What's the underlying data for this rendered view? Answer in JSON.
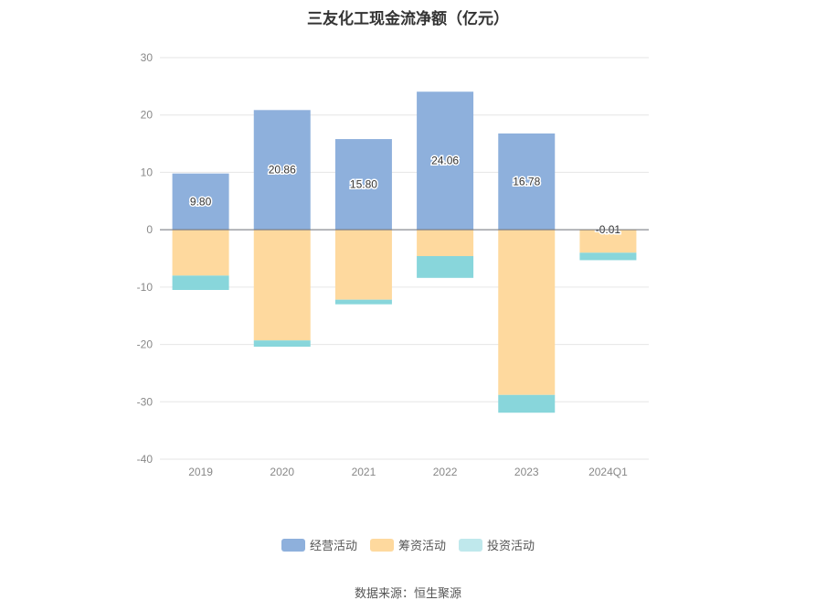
{
  "chart_data": {
    "type": "bar",
    "stacked": true,
    "title": "三友化工现金流净额（亿元）",
    "categories": [
      "2019",
      "2020",
      "2021",
      "2022",
      "2023",
      "2024Q1"
    ],
    "series": [
      {
        "name": "经营活动",
        "color": "#8eb0dc",
        "values": [
          9.8,
          20.86,
          15.8,
          24.06,
          16.78,
          -0.01
        ],
        "labels": [
          "9.80",
          "20.86",
          "15.80",
          "24.06",
          "16.78",
          "-0.01"
        ]
      },
      {
        "name": "筹资活动",
        "color": "#fed99e",
        "values": [
          -8.0,
          -19.3,
          -12.2,
          -4.6,
          -28.8,
          -4.0
        ]
      },
      {
        "name": "投资活动",
        "color": "#88d6db",
        "values": [
          -2.5,
          -1.1,
          -0.8,
          -3.8,
          -3.1,
          -1.3
        ]
      }
    ],
    "ylim": [
      -40,
      30
    ],
    "yticks": [
      30,
      20,
      10,
      0,
      -10,
      -20,
      -30,
      -40
    ],
    "grid": true,
    "legend_position": "bottom"
  },
  "legend": {
    "items": [
      {
        "label": "经营活动",
        "color": "#8eb0dc"
      },
      {
        "label": "筹资活动",
        "color": "#fed99e"
      },
      {
        "label": "投资活动",
        "color": "#bfe8ec"
      }
    ]
  },
  "source": "数据来源：恒生聚源"
}
